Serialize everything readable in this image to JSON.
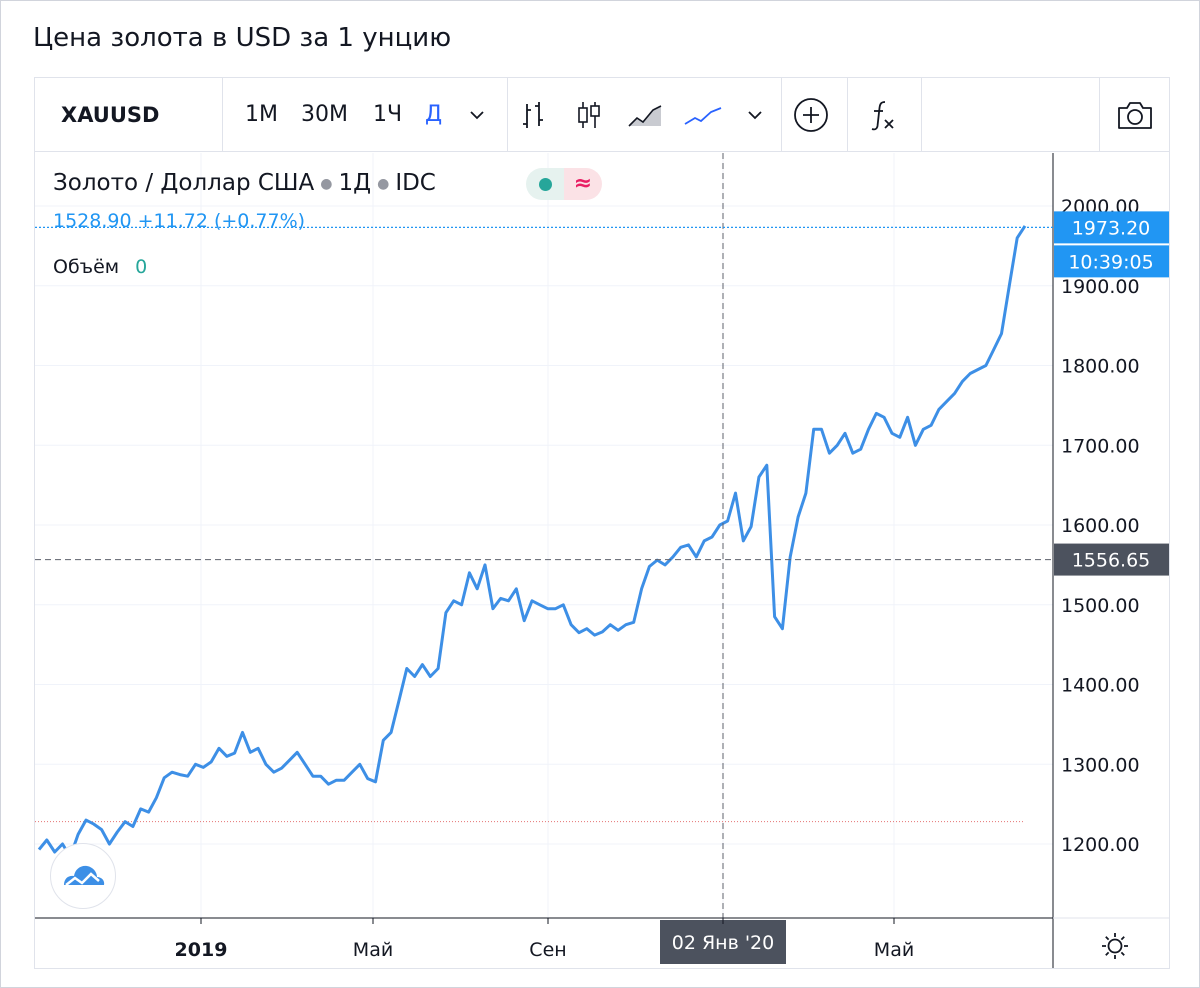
{
  "page": {
    "title": "Цена золота в USD за 1 унцию"
  },
  "toolbar": {
    "symbol": "XAUUSD",
    "intervals": [
      "1М",
      "30М",
      "1Ч",
      "Д"
    ],
    "active_interval": "Д",
    "icons": [
      "chevron-down-icon",
      "bar-chart-icon",
      "candles-icon",
      "area-chart-icon",
      "line-chart-icon",
      "chevron-down-icon",
      "add-compare-icon",
      "indicators-fx-icon",
      "camera-icon"
    ]
  },
  "legend": {
    "instrument": "Золото / Доллар США",
    "interval": "1Д",
    "source": "IDC",
    "price_text": "1528.90  +11.72 (+0.77%)",
    "volume_label": "Объём",
    "volume_value": "0"
  },
  "colors": {
    "line": "#3d8fe6",
    "accent": "#2196f3",
    "crosshair_label": "#4c525e",
    "grid": "#f0f3fa",
    "reference": "#e57373"
  },
  "chart_data": {
    "type": "line",
    "symbol": "XAUUSD",
    "ylim": [
      1100,
      2020
    ],
    "yticks": [
      "2000.00",
      "1900.00",
      "1800.00",
      "1700.00",
      "1600.00",
      "1500.00",
      "1400.00",
      "1300.00",
      "1200.00"
    ],
    "xticks": [
      "2019",
      "Май",
      "Сен",
      "Янв",
      "Май"
    ],
    "x_bold_ticks": [
      "2019"
    ],
    "last_price": "1973.20",
    "countdown": "10:39:05",
    "crosshair": {
      "price": "1556.65",
      "date": "02 Янв '20"
    },
    "reference_line": 1228,
    "series": [
      {
        "values": [
          1193,
          1205,
          1190,
          1200,
          1184,
          1212,
          1230,
          1225,
          1218,
          1200,
          1215,
          1228,
          1222,
          1244,
          1240,
          1258,
          1283,
          1290,
          1287,
          1285,
          1300,
          1296,
          1303,
          1320,
          1310,
          1314,
          1340,
          1315,
          1320,
          1300,
          1290,
          1295,
          1305,
          1315,
          1300,
          1285,
          1285,
          1275,
          1280,
          1280,
          1290,
          1300,
          1282,
          1278,
          1330,
          1340,
          1380,
          1420,
          1410,
          1425,
          1410,
          1420,
          1490,
          1505,
          1500,
          1540,
          1520,
          1550,
          1495,
          1508,
          1505,
          1520,
          1480,
          1505,
          1500,
          1495,
          1495,
          1500,
          1475,
          1465,
          1470,
          1462,
          1466,
          1475,
          1468,
          1475,
          1478,
          1520,
          1548,
          1556,
          1550,
          1560,
          1572,
          1575,
          1560,
          1580,
          1585,
          1600,
          1605,
          1640,
          1580,
          1598,
          1660,
          1675,
          1485,
          1470,
          1560,
          1610,
          1640,
          1720,
          1720,
          1690,
          1700,
          1715,
          1690,
          1695,
          1720,
          1740,
          1735,
          1715,
          1710,
          1735,
          1700,
          1720,
          1725,
          1745,
          1755,
          1765,
          1780,
          1790,
          1795,
          1800,
          1820,
          1840,
          1900,
          1960,
          1975
        ]
      }
    ]
  }
}
